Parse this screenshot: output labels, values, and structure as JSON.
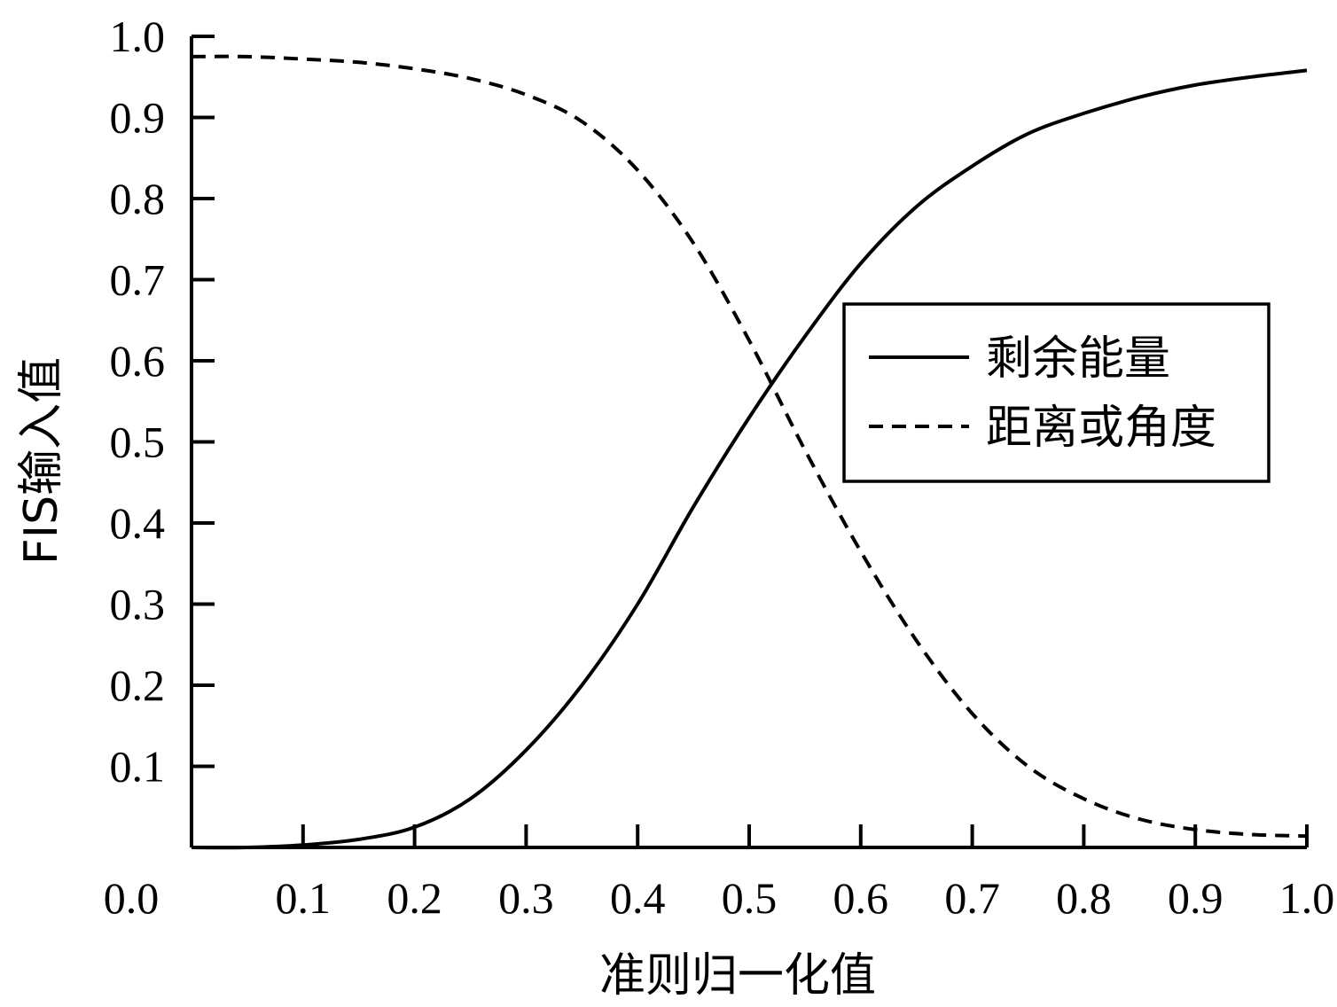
{
  "chart_data": {
    "type": "line",
    "xlabel": "准则归一化值",
    "ylabel": "FIS输入值",
    "xlim": [
      0,
      1
    ],
    "ylim": [
      0,
      1
    ],
    "x_ticks": [
      "0.0",
      "0.1",
      "0.2",
      "0.3",
      "0.4",
      "0.5",
      "0.6",
      "0.7",
      "0.8",
      "0.9",
      "1.0"
    ],
    "y_ticks": [
      "0.1",
      "0.2",
      "0.3",
      "0.4",
      "0.5",
      "0.6",
      "0.7",
      "0.8",
      "0.9",
      "1.0"
    ],
    "grid": false,
    "legend_position": "right",
    "series": [
      {
        "name": "剩余能量",
        "style": "solid",
        "color": "#000000",
        "x": [
          0.0,
          0.05,
          0.1,
          0.15,
          0.2,
          0.25,
          0.3,
          0.35,
          0.4,
          0.45,
          0.5,
          0.55,
          0.6,
          0.65,
          0.7,
          0.75,
          0.8,
          0.85,
          0.9,
          0.95,
          1.0
        ],
        "y": [
          0.0,
          0.0,
          0.003,
          0.01,
          0.025,
          0.06,
          0.12,
          0.2,
          0.3,
          0.42,
          0.53,
          0.63,
          0.72,
          0.79,
          0.84,
          0.88,
          0.905,
          0.925,
          0.94,
          0.95,
          0.958
        ]
      },
      {
        "name": "距离或角度",
        "style": "dashed",
        "color": "#000000",
        "x": [
          0.0,
          0.05,
          0.1,
          0.15,
          0.2,
          0.25,
          0.3,
          0.35,
          0.4,
          0.45,
          0.5,
          0.55,
          0.6,
          0.65,
          0.7,
          0.75,
          0.8,
          0.85,
          0.9,
          0.95,
          1.0
        ],
        "y": [
          0.975,
          0.975,
          0.972,
          0.968,
          0.96,
          0.948,
          0.928,
          0.895,
          0.835,
          0.745,
          0.625,
          0.49,
          0.365,
          0.255,
          0.165,
          0.1,
          0.06,
          0.035,
          0.022,
          0.016,
          0.014
        ]
      }
    ]
  }
}
